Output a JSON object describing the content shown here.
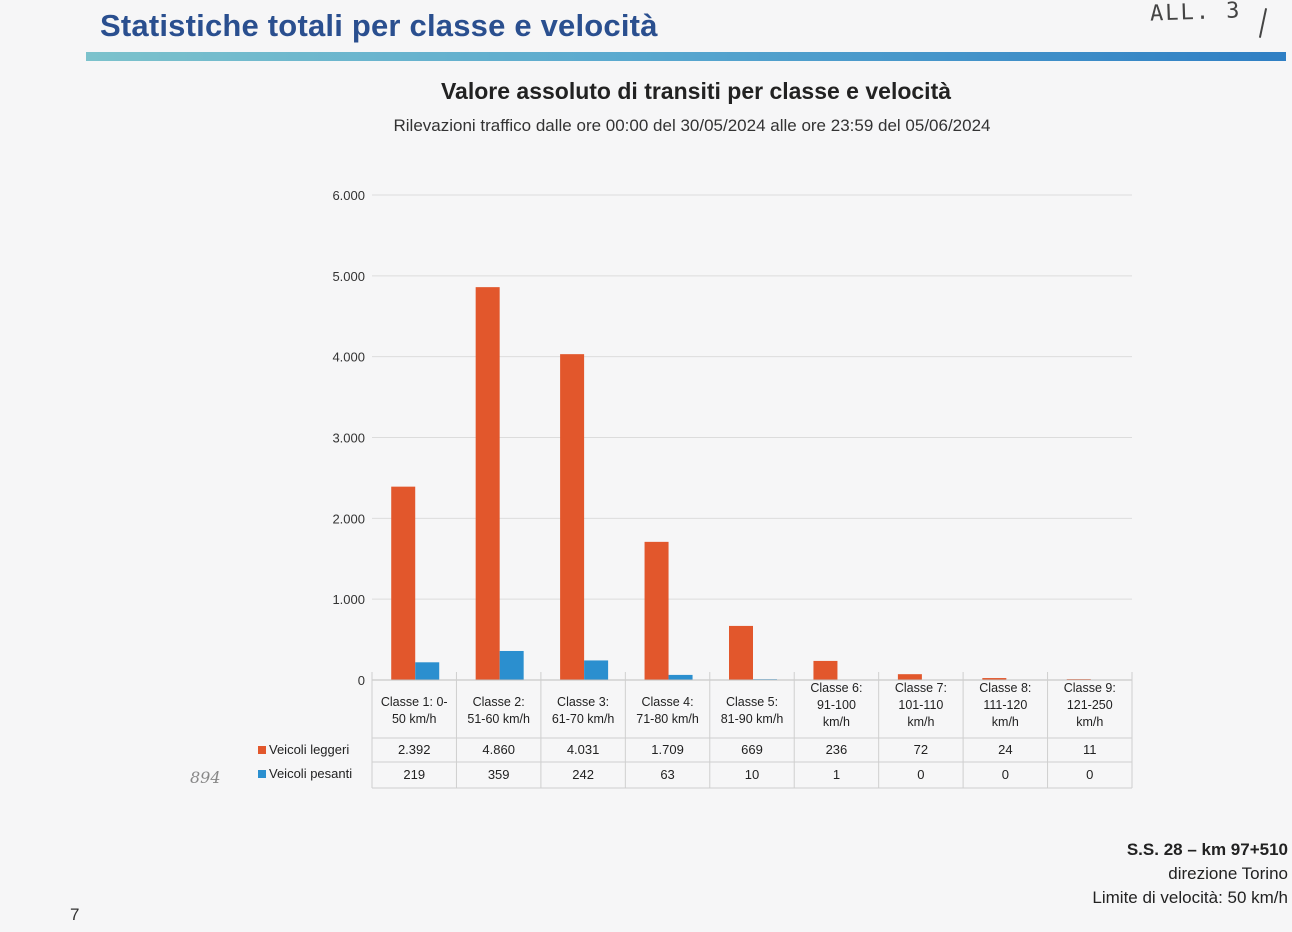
{
  "header": {
    "title": "Statistiche totali per classe e velocità",
    "handwritten_note": "ALL. 3"
  },
  "margin_note": "894",
  "chart_data": {
    "type": "bar",
    "title": "Valore assoluto di transiti per classe e velocità",
    "subtitle": "Rilevazioni traffico dalle ore 00:00 del 30/05/2024 alle ore 23:59 del 05/06/2024",
    "categories": [
      [
        "Classe 1: 0-",
        "50 km/h"
      ],
      [
        "Classe 2:",
        "51-60 km/h"
      ],
      [
        "Classe 3:",
        "61-70 km/h"
      ],
      [
        "Classe 4:",
        "71-80 km/h"
      ],
      [
        "Classe 5:",
        "81-90 km/h"
      ],
      [
        "Classe 6:",
        "91-100",
        "km/h"
      ],
      [
        "Classe 7:",
        "101-110",
        "km/h"
      ],
      [
        "Classe 8:",
        "111-120",
        "km/h"
      ],
      [
        "Classe 9:",
        "121-250",
        "km/h"
      ]
    ],
    "series": [
      {
        "name": "Veicoli leggeri",
        "color": "#e2572c",
        "values": [
          2392,
          4860,
          4031,
          1709,
          669,
          236,
          72,
          24,
          11
        ],
        "labels": [
          "2.392",
          "4.860",
          "4.031",
          "1.709",
          "669",
          "236",
          "72",
          "24",
          "11"
        ]
      },
      {
        "name": "Veicoli pesanti",
        "color": "#2b8fcf",
        "values": [
          219,
          359,
          242,
          63,
          10,
          1,
          0,
          0,
          0
        ],
        "labels": [
          "219",
          "359",
          "242",
          "63",
          "10",
          "1",
          "0",
          "0",
          "0"
        ]
      }
    ],
    "ylim": [
      0,
      6000
    ],
    "yticks": [
      "0",
      "1.000",
      "2.000",
      "3.000",
      "4.000",
      "5.000",
      "6.000"
    ],
    "grid": true,
    "legend": "data-table"
  },
  "footer": {
    "location": "S.S. 28 – km 97+510",
    "direction": "direzione Torino",
    "speed_limit": "Limite di velocità: 50 km/h"
  },
  "page_number": "7"
}
